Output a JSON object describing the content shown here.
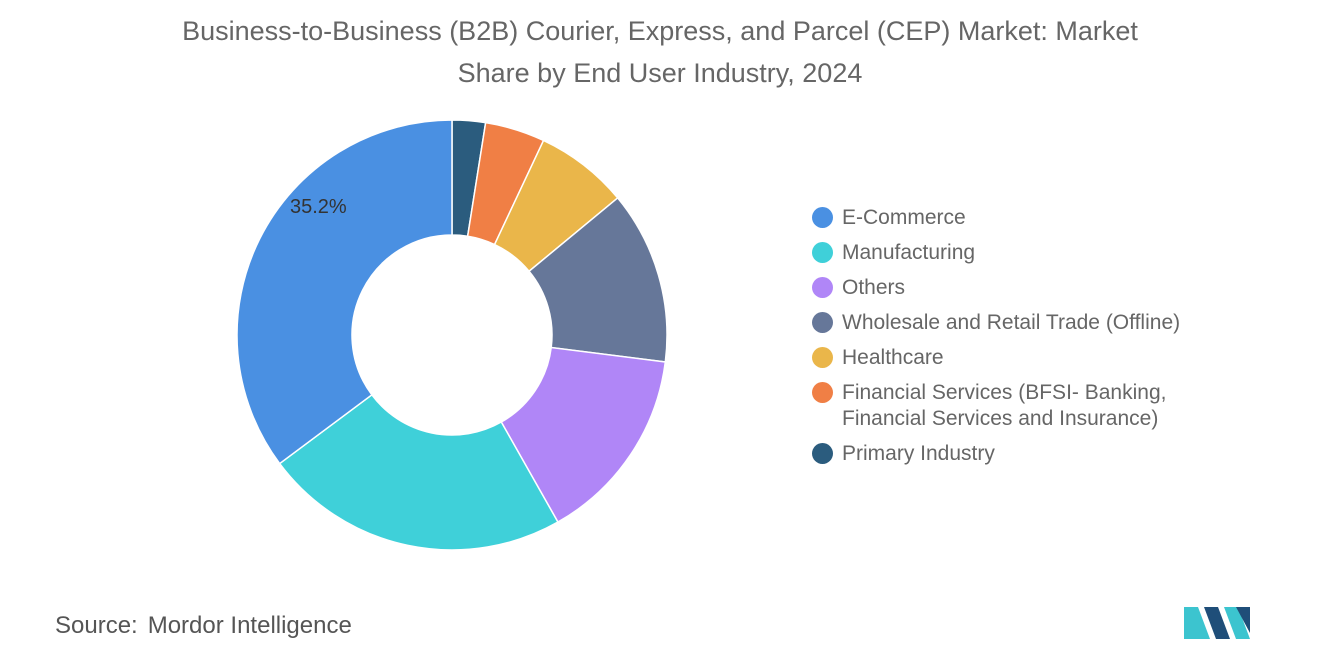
{
  "chart_data": {
    "type": "pie",
    "title": "Business-to-Business (B2B) Courier, Express, and Parcel (CEP) Market: Market Share by End User Industry, 2024",
    "title_lines": [
      "Business-to-Business (B2B) Courier, Express, and Parcel (CEP) Market: Market",
      "Share by End User Industry, 2024"
    ],
    "donut": true,
    "legend_position": "right",
    "slices": [
      {
        "name": "Primary Industry",
        "value": 2.5,
        "color": "#2b5c7e"
      },
      {
        "name": "Financial Services (BFSI- Banking, Financial Services and Insurance)",
        "value": 4.5,
        "color": "#f07f45"
      },
      {
        "name": "Healthcare",
        "value": 7.0,
        "color": "#eab64a"
      },
      {
        "name": "Wholesale and Retail Trade (Offline)",
        "value": 13.0,
        "color": "#667799"
      },
      {
        "name": "Others",
        "value": 14.8,
        "color": "#b086f7"
      },
      {
        "name": "Manufacturing",
        "value": 23.0,
        "color": "#3fd0d9"
      },
      {
        "name": "E-Commerce",
        "value": 35.2,
        "color": "#4a90e2",
        "label": "35.2%"
      }
    ],
    "legend": [
      {
        "label": "E-Commerce",
        "color": "#4a90e2"
      },
      {
        "label": "Manufacturing",
        "color": "#3fd0d9"
      },
      {
        "label": "Others",
        "color": "#b086f7"
      },
      {
        "label": "Wholesale and Retail Trade (Offline)",
        "color": "#667799"
      },
      {
        "label": "Healthcare",
        "color": "#eab64a"
      },
      {
        "label": "Financial Services (BFSI- Banking,\nFinancial Services and Insurance)",
        "color": "#f07f45"
      },
      {
        "label": "Primary Industry",
        "color": "#2b5c7e"
      }
    ]
  },
  "source": {
    "key": "Source:",
    "value": "Mordor Intelligence"
  },
  "logo": {
    "colors": [
      "#1f4e79",
      "#3cc4cf"
    ]
  }
}
